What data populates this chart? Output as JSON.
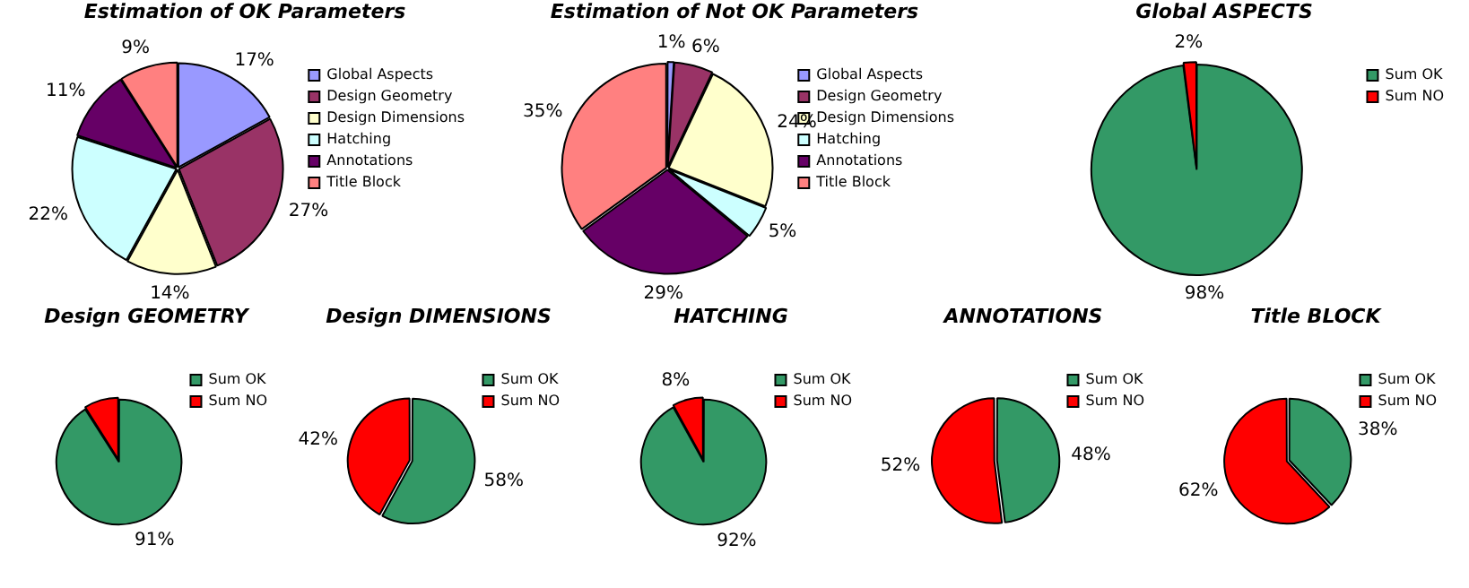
{
  "chart_data": [
    {
      "type": "pie",
      "title": "Estimation of OK Parameters",
      "categories": [
        "Global Aspects",
        "Design Geometry",
        "Design Dimensions",
        "Hatching",
        "Annotations",
        "Title Block"
      ],
      "values": [
        17,
        27,
        14,
        22,
        11,
        9
      ],
      "value_labels": [
        "17%",
        "27%",
        "14%",
        "22%",
        "11%",
        "9%"
      ],
      "colors": [
        "#9999ff",
        "#993366",
        "#ffffcc",
        "#ccffff",
        "#660066",
        "#ff8080"
      ],
      "legend": "top right"
    },
    {
      "type": "pie",
      "title": "Estimation of Not OK Parameters",
      "categories": [
        "Global Aspects",
        "Design Geometry",
        "Design Dimensions",
        "Hatching",
        "Annotations",
        "Title Block"
      ],
      "values": [
        1,
        6,
        24,
        5,
        29,
        35
      ],
      "value_labels": [
        "1%",
        "6%",
        "24%",
        "5%",
        "29%",
        "35%"
      ],
      "colors": [
        "#9999ff",
        "#993366",
        "#ffffcc",
        "#ccffff",
        "#660066",
        "#ff8080"
      ],
      "legend": "top right"
    },
    {
      "type": "pie",
      "title": "Global ASPECTS",
      "categories": [
        "Sum OK",
        "Sum NO"
      ],
      "values": [
        98,
        2
      ],
      "value_labels": [
        "98%",
        "2%"
      ],
      "colors": [
        "#339966",
        "#ff0000"
      ],
      "legend": "top right"
    },
    {
      "type": "pie",
      "title": "Design GEOMETRY",
      "categories": [
        "Sum OK",
        "Sum NO"
      ],
      "values": [
        91,
        9
      ],
      "value_labels": [
        "91%",
        null
      ],
      "colors": [
        "#339966",
        "#ff0000"
      ],
      "legend": "top right"
    },
    {
      "type": "pie",
      "title": "Design DIMENSIONS",
      "categories": [
        "Sum OK",
        "Sum NO"
      ],
      "values": [
        58,
        42
      ],
      "value_labels": [
        "58%",
        "42%"
      ],
      "colors": [
        "#339966",
        "#ff0000"
      ],
      "legend": "top right"
    },
    {
      "type": "pie",
      "title": "HATCHING",
      "categories": [
        "Sum OK",
        "Sum NO"
      ],
      "values": [
        92,
        8
      ],
      "value_labels": [
        "92%",
        "8%"
      ],
      "colors": [
        "#339966",
        "#ff0000"
      ],
      "legend": "top right"
    },
    {
      "type": "pie",
      "title": "ANNOTATIONS",
      "categories": [
        "Sum OK",
        "Sum NO"
      ],
      "values": [
        48,
        52
      ],
      "value_labels": [
        "48%",
        "52%"
      ],
      "colors": [
        "#339966",
        "#ff0000"
      ],
      "legend": "top right"
    },
    {
      "type": "pie",
      "title": "Title BLOCK",
      "categories": [
        "Sum OK",
        "Sum NO"
      ],
      "values": [
        38,
        62
      ],
      "value_labels": [
        "38%",
        "62%"
      ],
      "colors": [
        "#339966",
        "#ff0000"
      ],
      "legend": "top right"
    }
  ]
}
